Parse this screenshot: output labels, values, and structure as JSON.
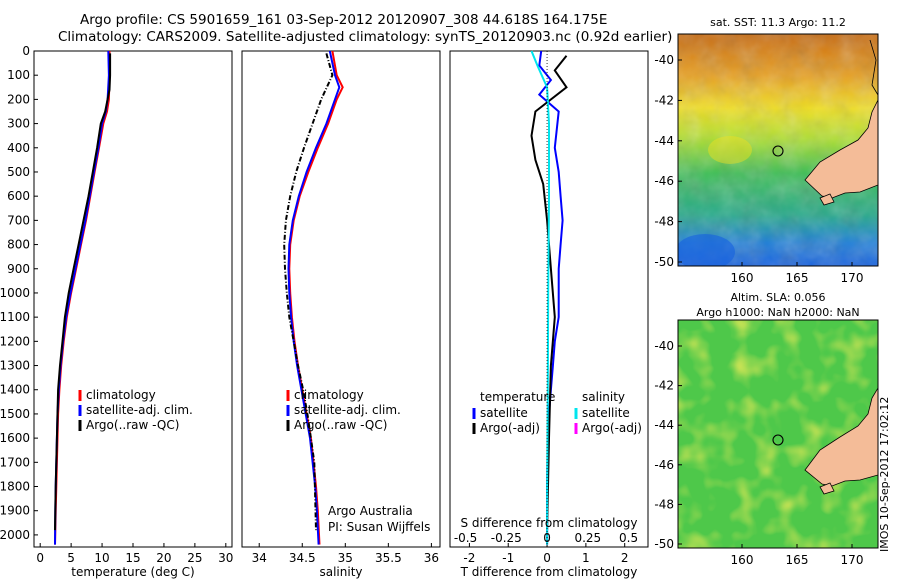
{
  "header": {
    "line1": "Argo profile: CS 5901659_161 03-Sep-2012 20120907_308 44.618S 164.175E",
    "line2": "Climatology: CARS2009. Satellite-adjusted climatology: synTS_20120903.nc (0.92d earlier)"
  },
  "colors": {
    "climatology": "#ff0000",
    "satellite": "#0000ff",
    "argo": "#000000",
    "sal_satellite": "#00e5ee",
    "sal_argo": "#ff00ff"
  },
  "chart_data": [
    {
      "type": "line",
      "id": "temperature",
      "xlabel": "temperature (deg C)",
      "ylabel": "",
      "xlim": [
        -1,
        31
      ],
      "ylim": [
        2050,
        0
      ],
      "xticks": [
        0,
        5,
        10,
        15,
        20,
        25,
        30
      ],
      "yticks": [
        0,
        100,
        200,
        300,
        400,
        500,
        600,
        700,
        800,
        900,
        1000,
        1100,
        1200,
        1300,
        1400,
        1500,
        1600,
        1700,
        1800,
        1900,
        2000
      ],
      "legend": [
        "climatology",
        "satellite-adj. clim.",
        "Argo(..raw -QC)"
      ],
      "series": [
        {
          "name": "climatology",
          "x": [
            11.2,
            11.2,
            11.1,
            10.8,
            10.2,
            9.5,
            8.8,
            8.1,
            7.4,
            6.6,
            5.8,
            5.0,
            4.3,
            3.8,
            3.4,
            3.1,
            2.9,
            2.8,
            2.7,
            2.6,
            2.5,
            2.4
          ],
          "y": [
            0,
            100,
            200,
            250,
            300,
            400,
            500,
            600,
            700,
            800,
            900,
            1000,
            1100,
            1200,
            1300,
            1400,
            1500,
            1600,
            1700,
            1800,
            1900,
            2040
          ]
        },
        {
          "name": "satellite-adj. clim.",
          "x": [
            11.0,
            11.1,
            10.9,
            10.6,
            10.0,
            9.4,
            8.7,
            8.0,
            7.3,
            6.5,
            5.7,
            4.9,
            4.2,
            3.7,
            3.3,
            3.0,
            2.8,
            2.7,
            2.6,
            2.5,
            2.45,
            2.4
          ],
          "y": [
            0,
            100,
            200,
            250,
            300,
            400,
            500,
            600,
            700,
            800,
            900,
            1000,
            1100,
            1200,
            1300,
            1400,
            1500,
            1600,
            1700,
            1800,
            1900,
            2040
          ]
        },
        {
          "name": "Argo(..raw -QC)",
          "x": [
            11.3,
            11.3,
            11.2,
            10.5,
            9.8,
            9.2,
            8.5,
            7.8,
            7.0,
            6.2,
            5.4,
            4.6,
            4.0,
            3.6,
            3.2,
            2.9,
            2.8,
            2.7,
            2.6,
            2.5,
            2.4
          ],
          "y": [
            10,
            100,
            160,
            250,
            300,
            400,
            500,
            600,
            700,
            800,
            900,
            1000,
            1100,
            1200,
            1300,
            1400,
            1500,
            1600,
            1700,
            1800,
            1980
          ]
        }
      ]
    },
    {
      "type": "line",
      "id": "salinity",
      "xlabel": "salinity",
      "ylabel": "",
      "xlim": [
        33.8,
        36.1
      ],
      "ylim": [
        2050,
        0
      ],
      "xticks": [
        34,
        34.5,
        35,
        35.5,
        36
      ],
      "legend": [
        "climatology",
        "satellite-adj. clim.",
        "Argo(..raw -QC)"
      ],
      "annotations": [
        "Argo Australia",
        "PI: Susan Wijffels"
      ],
      "series": [
        {
          "name": "climatology",
          "x": [
            34.85,
            34.9,
            34.97,
            34.9,
            34.8,
            34.68,
            34.57,
            34.47,
            34.4,
            34.36,
            34.35,
            34.36,
            34.38,
            34.41,
            34.45,
            34.5,
            34.55,
            34.6,
            34.63,
            34.66,
            34.68,
            34.7
          ],
          "y": [
            0,
            100,
            150,
            200,
            300,
            400,
            500,
            600,
            700,
            800,
            900,
            1000,
            1100,
            1200,
            1300,
            1400,
            1500,
            1600,
            1700,
            1800,
            1900,
            2040
          ]
        },
        {
          "name": "satellite-adj. clim.",
          "x": [
            34.82,
            34.88,
            34.93,
            34.88,
            34.78,
            34.66,
            34.55,
            34.46,
            34.39,
            34.35,
            34.34,
            34.35,
            34.37,
            34.4,
            34.44,
            34.49,
            34.54,
            34.59,
            34.62,
            34.65,
            34.67,
            34.69
          ],
          "y": [
            0,
            100,
            150,
            200,
            300,
            400,
            500,
            600,
            700,
            800,
            900,
            1000,
            1100,
            1200,
            1300,
            1400,
            1500,
            1600,
            1700,
            1800,
            1900,
            2040
          ]
        },
        {
          "name": "Argo(..raw -QC)",
          "x": [
            34.78,
            34.85,
            34.72,
            34.62,
            34.52,
            34.43,
            34.36,
            34.31,
            34.29,
            34.3,
            34.32,
            34.35,
            34.4,
            34.45,
            34.51,
            34.56,
            34.6,
            34.64,
            34.66
          ],
          "y": [
            10,
            100,
            200,
            300,
            400,
            500,
            600,
            700,
            800,
            900,
            1000,
            1100,
            1200,
            1300,
            1400,
            1500,
            1600,
            1700,
            1980
          ]
        }
      ]
    },
    {
      "type": "line",
      "id": "difference",
      "xlabel": "T difference from climatology",
      "ylabel": "",
      "title_bottom": "S difference from climatology",
      "xlim": [
        -2.5,
        2.6
      ],
      "ylim": [
        2050,
        0
      ],
      "xticks": [
        -2,
        -1,
        0,
        1,
        2
      ],
      "sxticks": [
        "-0.5",
        "-0.25",
        "0",
        "0.25",
        "0.5"
      ],
      "legend_t": {
        "header": "temperature",
        "items": [
          "satellite",
          "Argo(-adj)"
        ]
      },
      "legend_s": {
        "header": "salinity",
        "items": [
          "satellite",
          "Argo(-adj)"
        ]
      },
      "series": [
        {
          "name": "T satellite",
          "x": [
            -0.15,
            -0.2,
            0.1,
            -0.2,
            0.3,
            0.2,
            0.3,
            0.35,
            0.4,
            0.35,
            0.3,
            0.3,
            0.3,
            0.2,
            0.15,
            0.1,
            0.05,
            0.02,
            0.0,
            0.0
          ],
          "y": [
            0,
            60,
            120,
            180,
            250,
            400,
            500,
            600,
            700,
            800,
            900,
            1000,
            1100,
            1200,
            1300,
            1400,
            1500,
            1600,
            1800,
            2040
          ]
        },
        {
          "name": "T Argo(-adj)",
          "x": [
            0.5,
            0.2,
            0.5,
            -0.3,
            -0.4,
            -0.3,
            -0.1,
            0.0,
            0.1,
            0.2,
            0.1,
            0.05,
            0.0
          ],
          "y": [
            20,
            80,
            150,
            250,
            350,
            450,
            550,
            700,
            900,
            1100,
            1300,
            1600,
            1980
          ]
        },
        {
          "name": "S satellite",
          "x": [
            -0.4,
            -0.25,
            0.0,
            0.05,
            0.05,
            0.03,
            0.02,
            0.0,
            0.0
          ],
          "y": [
            0,
            60,
            150,
            300,
            600,
            1000,
            1400,
            1800,
            2040
          ]
        }
      ]
    }
  ],
  "maps": {
    "sst_title": "sat. SST: 11.3 Argo: 11.2",
    "sla_title1": "Altim. SLA: 0.056",
    "sla_title2": "Argo h1000: NaN h2000: NaN",
    "lat_ticks": [
      "-40",
      "-42",
      "-44",
      "-46",
      "-48",
      "-50"
    ],
    "lon_ticks": [
      "160",
      "165",
      "170"
    ]
  },
  "stamp": "IMOS 10-Sep-2012 17:02:12"
}
